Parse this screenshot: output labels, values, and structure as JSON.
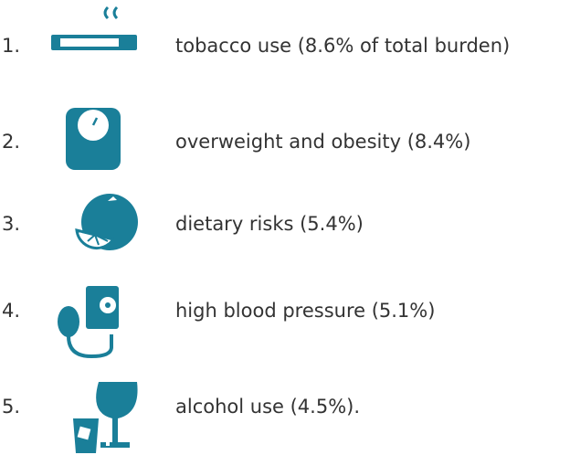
{
  "items": [
    {
      "number": "1.",
      "label": "tobacco use (8.6% of total burden)"
    },
    {
      "number": "2.",
      "label": "overweight and obesity (8.4%)"
    },
    {
      "number": "3.",
      "label": "dietary risks (5.4%)"
    },
    {
      "number": "4.",
      "label": "high blood pressure (5.1%)"
    },
    {
      "number": "5.",
      "label": "alcohol use (4.5%)."
    }
  ]
}
